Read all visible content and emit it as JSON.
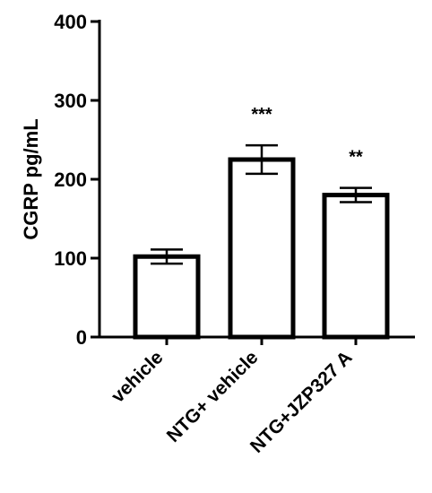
{
  "chart_data": {
    "type": "bar",
    "categories": [
      "vehicle",
      "NTG+ vehicle",
      "NTG+JZP327 A"
    ],
    "values": [
      102,
      225,
      180
    ],
    "errors": [
      9,
      18,
      9
    ],
    "significance": [
      "",
      "***",
      "**"
    ],
    "title": "",
    "xlabel": "",
    "ylabel": "CGRP pg/mL",
    "ylim": [
      0,
      400
    ],
    "yticks": [
      0,
      100,
      200,
      300,
      400
    ],
    "grid": false,
    "bar_fill": "#ffffff",
    "bar_stroke": "#000000"
  }
}
